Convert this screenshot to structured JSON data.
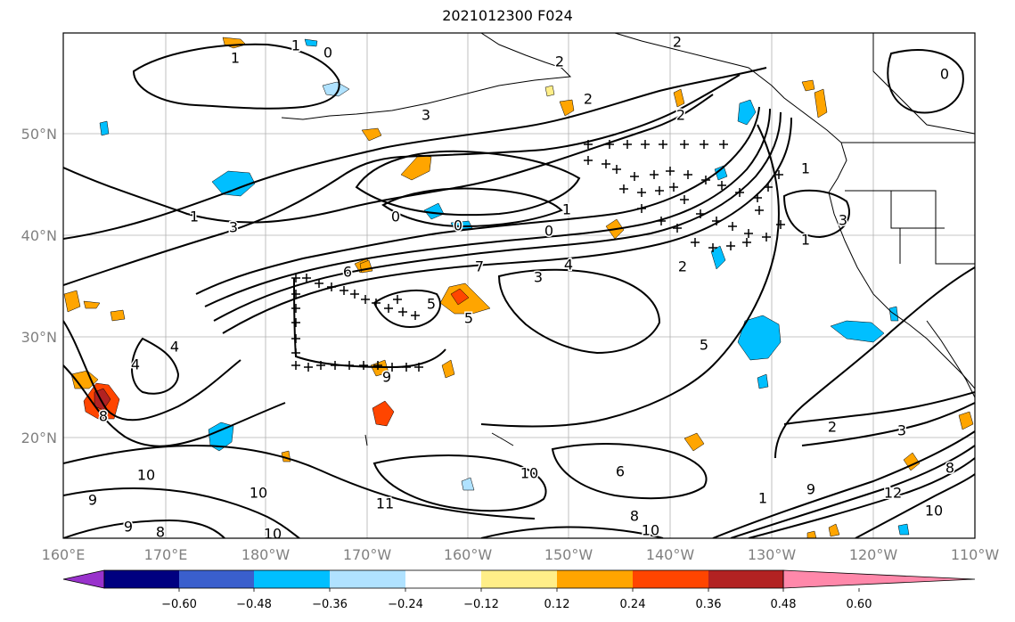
{
  "title": "2021012300 F024",
  "lon_labels": [
    "160°E",
    "170°E",
    "180°W",
    "170°W",
    "160°W",
    "150°W",
    "140°W",
    "130°W",
    "120°W",
    "110°W"
  ],
  "lat_labels": [
    "50°N",
    "40°N",
    "30°N",
    "20°N"
  ],
  "colorbar": {
    "ticks": [
      "−0.60",
      "−0.48",
      "−0.36",
      "−0.24",
      "−0.12",
      "0.12",
      "0.24",
      "0.36",
      "0.48",
      "0.60"
    ],
    "colors": [
      "#9932cc",
      "#000080",
      "#3a5fcd",
      "#00bfff",
      "#b0e2ff",
      "#ffffff",
      "#ffee88",
      "#ffa500",
      "#ff4500",
      "#b22222",
      "#ff88aa"
    ]
  },
  "contour_labels": [
    "1",
    "0",
    "2",
    "2",
    "1",
    "2",
    "0",
    "2",
    "3",
    "0",
    "0",
    "1",
    "0",
    "1",
    "3",
    "3",
    "6",
    "7",
    "4",
    "3",
    "2",
    "5",
    "5",
    "5",
    "4",
    "4",
    "8",
    "9",
    "6",
    "10",
    "9",
    "10",
    "8",
    "10",
    "11",
    "10",
    "9",
    "8",
    "10",
    "2",
    "3",
    "1",
    "9",
    "12",
    "10",
    "8",
    "1",
    "1"
  ],
  "colors": {
    "contour": "#000000",
    "land": "#000000",
    "grid": "#b0b0b0",
    "positive_light": "#ffee88",
    "positive_mid": "#ffa500",
    "positive_strong": "#ff4500",
    "positive_max": "#b22222",
    "negative_light": "#b0e2ff",
    "negative_mid": "#00bfff"
  }
}
